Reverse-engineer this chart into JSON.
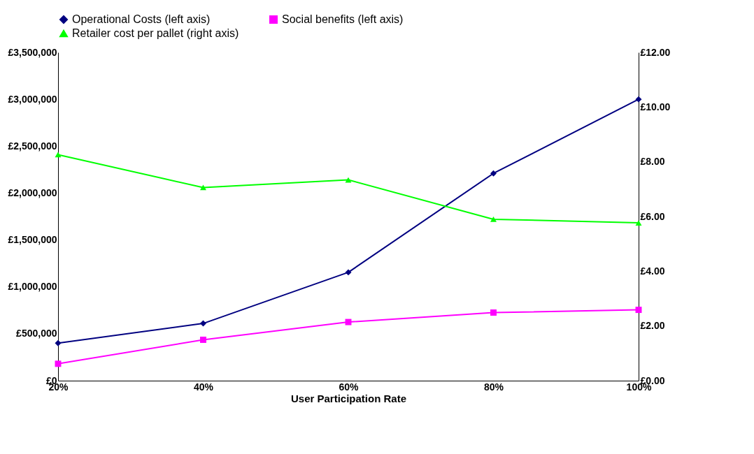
{
  "chart_data": {
    "type": "line",
    "xlabel": "User Participation Rate",
    "categories": [
      "20%",
      "40%",
      "60%",
      "80%",
      "100%"
    ],
    "series": [
      {
        "name": "Operational Costs (left axis)",
        "color": "#000080",
        "marker": "diamond",
        "values": [
          400000,
          610000,
          1155000,
          2210000,
          3000000
        ]
      },
      {
        "name": "Social benefits (left axis)",
        "color": "#ff00ff",
        "marker": "square",
        "values": [
          180000,
          436000,
          625000,
          726000,
          755000
        ]
      },
      {
        "name": "Retailer cost per pallet (right axis)",
        "color": "#00ff00",
        "marker": "triangle",
        "axis": "y2",
        "values": [
          8.26,
          7.06,
          7.34,
          5.9,
          5.77
        ]
      }
    ],
    "ylim": [
      0,
      3500000
    ],
    "yticks": [
      {
        "value": 0,
        "label": "£0"
      },
      {
        "value": 500000,
        "label": "£500,000"
      },
      {
        "value": 1000000,
        "label": "£1,000,000"
      },
      {
        "value": 1500000,
        "label": "£1,500,000"
      },
      {
        "value": 2000000,
        "label": "£2,000,000"
      },
      {
        "value": 2500000,
        "label": "£2,500,000"
      },
      {
        "value": 3000000,
        "label": "£3,000,000"
      },
      {
        "value": 3500000,
        "label": "£3,500,000"
      }
    ],
    "y2lim": [
      0,
      12
    ],
    "y2ticks": [
      {
        "value": 0,
        "label": "£0.00"
      },
      {
        "value": 2,
        "label": "£2.00"
      },
      {
        "value": 4,
        "label": "£4.00"
      },
      {
        "value": 6,
        "label": "£6.00"
      },
      {
        "value": 8,
        "label": "£8.00"
      },
      {
        "value": 10,
        "label": "£10.00"
      },
      {
        "value": 12,
        "label": "£12.00"
      }
    ],
    "grid": false,
    "legend": "top",
    "line_style": "solid"
  }
}
